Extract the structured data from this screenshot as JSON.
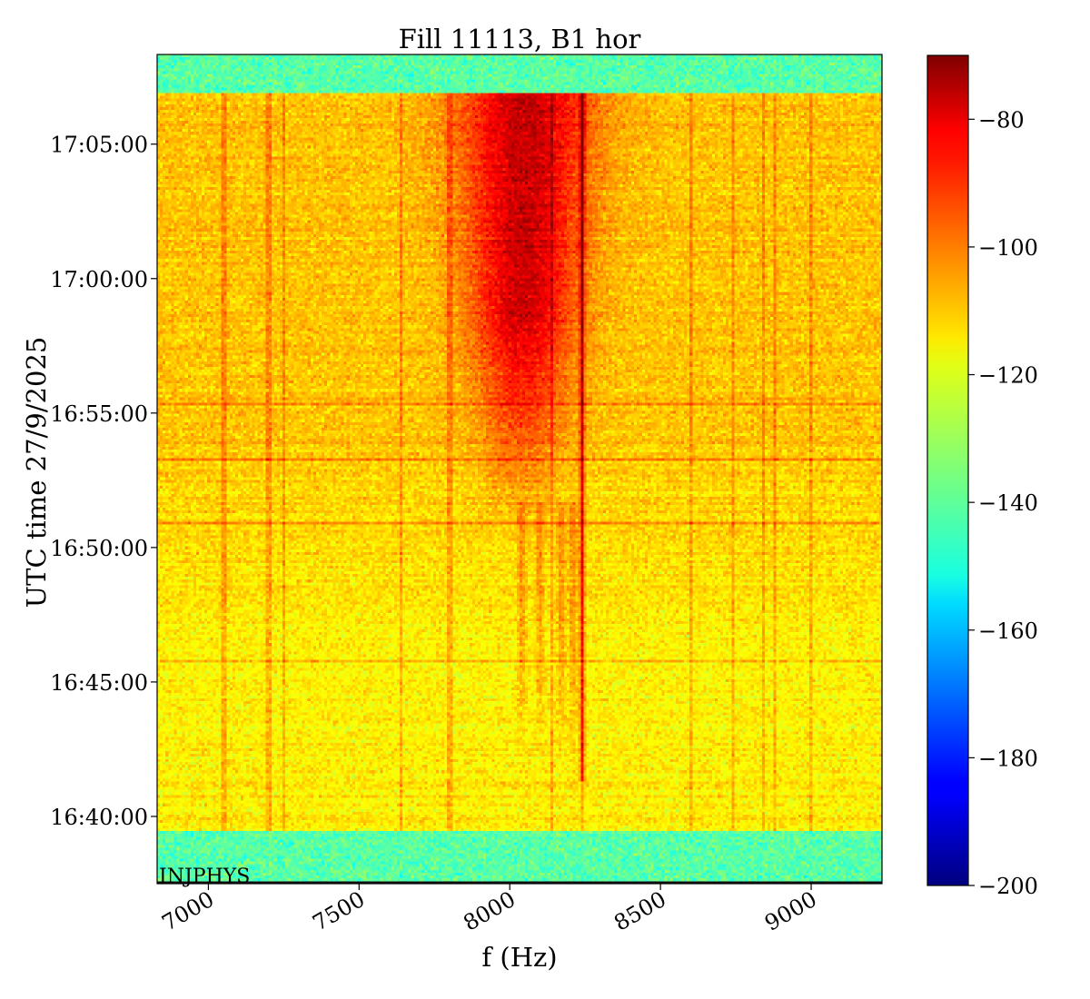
{
  "chart_data": {
    "type": "heatmap",
    "title": "Fill 11113, B1 hor",
    "xlabel": "f (Hz)",
    "ylabel": "UTC time 27/9/2025",
    "xlim": [
      6830,
      9235
    ],
    "x_ticks": [
      7000,
      7500,
      8000,
      8500,
      9000
    ],
    "x_tick_labels": [
      "7000",
      "7500",
      "8000",
      "8500",
      "9000"
    ],
    "ylim": [
      "16:37:30",
      "17:08:20"
    ],
    "y_ticks_seconds": [
      0,
      300,
      600,
      900,
      1200,
      1500
    ],
    "y_tick_labels": [
      "16:40:00",
      "16:45:00",
      "16:50:00",
      "16:55:00",
      "17:00:00",
      "17:05:00"
    ],
    "y_tick_origin_label": "16:40:00",
    "y_range_seconds": [
      -150,
      1700
    ],
    "colormap": "jet",
    "colorbar": {
      "vmin": -200,
      "vmax": -70,
      "ticks": [
        -80,
        -100,
        -120,
        -140,
        -160,
        -180,
        -200
      ],
      "tick_labels": [
        "−80",
        "−100",
        "−120",
        "−140",
        "−160",
        "−180",
        "−200"
      ]
    },
    "annotation": "INJPHYS",
    "data_time_range_seconds": [
      -35,
      1615
    ],
    "background_level_db": -115,
    "noise_floor_db": -140,
    "band_maximum": {
      "f_hz": 8050,
      "time": "17:05:00",
      "level_db": -80
    },
    "spectral_lines_hz": [
      7050,
      7200,
      7250,
      7640,
      7800,
      8140,
      8240,
      8600,
      8740,
      8840,
      8880,
      9000
    ],
    "horizontal_lines": [
      "16:45:45",
      "16:50:55",
      "16:53:15",
      "16:55:20"
    ],
    "series": [
      {
        "name": "",
        "x": [
          7000,
          7500,
          7800,
          7950,
          8050,
          8150,
          8240,
          8400,
          9000
        ],
        "y": [
          -115,
          -113,
          -106,
          -90,
          -82,
          -92,
          -84,
          -112,
          -116
        ]
      }
    ]
  }
}
